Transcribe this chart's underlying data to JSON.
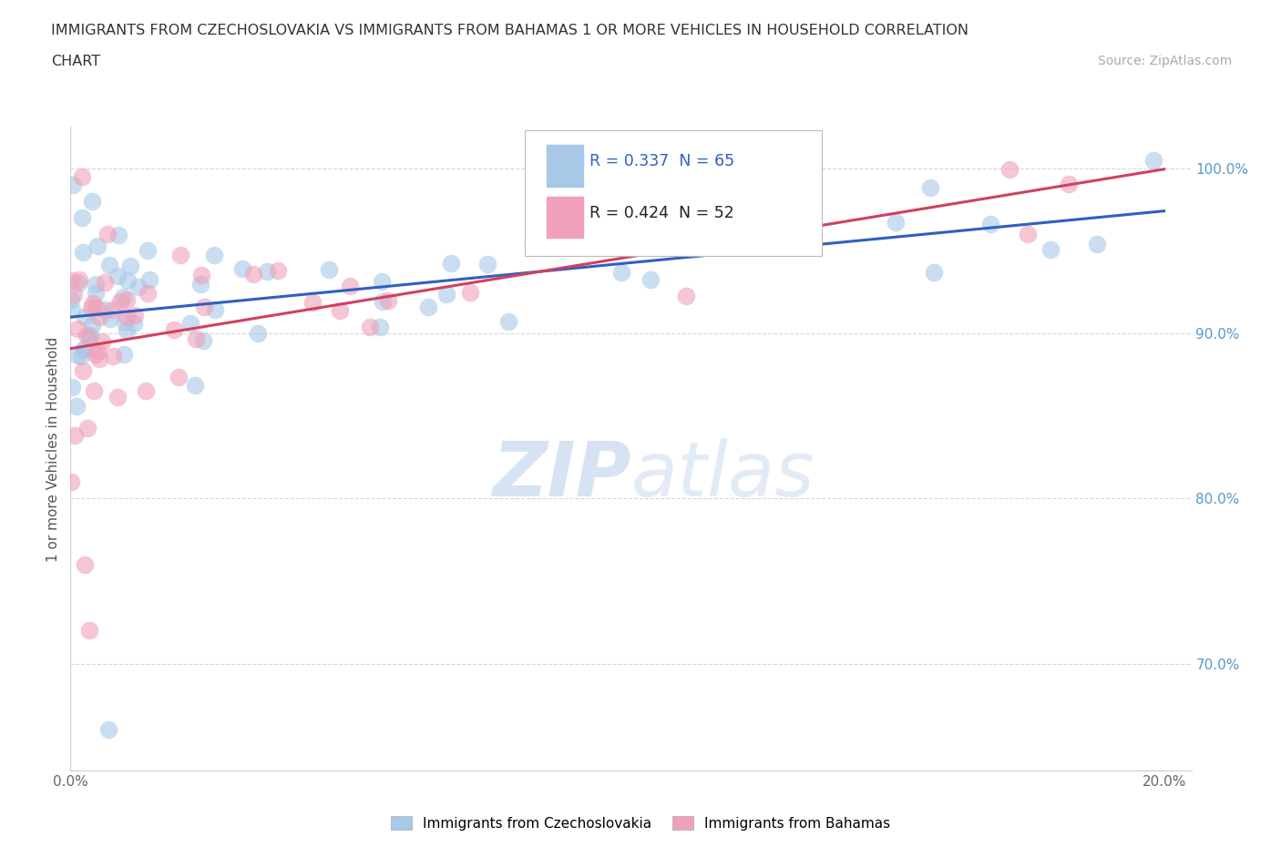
{
  "title_line1": "IMMIGRANTS FROM CZECHOSLOVAKIA VS IMMIGRANTS FROM BAHAMAS 1 OR MORE VEHICLES IN HOUSEHOLD CORRELATION",
  "title_line2": "CHART",
  "source": "Source: ZipAtlas.com",
  "ylabel": "1 or more Vehicles in Household",
  "R_czech": 0.337,
  "N_czech": 65,
  "R_bahamas": 0.424,
  "N_bahamas": 52,
  "color_czech": "#a8c8e8",
  "color_bahamas": "#f0a0b8",
  "line_color_czech": "#3060c0",
  "line_color_bahamas": "#d04060",
  "background_color": "#ffffff",
  "xlim": [
    0.0,
    0.205
  ],
  "ylim": [
    0.635,
    1.025
  ],
  "yticks": [
    0.7,
    0.8,
    0.9,
    1.0
  ],
  "ytick_labels": [
    "70.0%",
    "80.0%",
    "90.0%",
    "100.0%"
  ],
  "xticks": [
    0.0,
    0.05,
    0.1,
    0.15,
    0.2
  ],
  "xtick_labels": [
    "0.0%",
    "",
    "",
    "",
    "20.0%"
  ],
  "legend_label_czech": "Immigrants from Czechoslovakia",
  "legend_label_bahamas": "Immigrants from Bahamas"
}
